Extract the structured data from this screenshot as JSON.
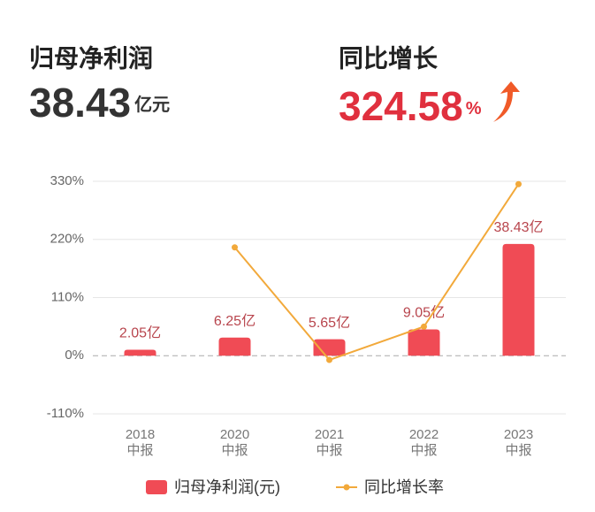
{
  "header": {
    "left": {
      "title": "归母净利润",
      "value": "38.43",
      "unit": "亿元"
    },
    "right": {
      "title": "同比增长",
      "value": "324.58",
      "unit": "%"
    }
  },
  "chart_data": {
    "type": "bar-line",
    "categories": [
      [
        "2018",
        "中报"
      ],
      [
        "2020",
        "中报"
      ],
      [
        "2021",
        "中报"
      ],
      [
        "2022",
        "中报"
      ],
      [
        "2023",
        "中报"
      ]
    ],
    "ylim": [
      -110,
      330
    ],
    "yticks": [
      {
        "value": -110,
        "label": "-110%"
      },
      {
        "value": 0,
        "label": "0%"
      },
      {
        "value": 110,
        "label": "110%"
      },
      {
        "value": 220,
        "label": "220%"
      },
      {
        "value": 330,
        "label": "330%"
      }
    ],
    "y2lim": [
      -20,
      60
    ],
    "grid": true,
    "series": [
      {
        "name": "归母净利润(元)",
        "type": "bar",
        "axis": "y2",
        "color": "#f04b55",
        "values": [
          2.05,
          6.25,
          5.65,
          9.05,
          38.43
        ],
        "value_labels": [
          "2.05亿",
          "6.25亿",
          "5.65亿",
          "9.05亿",
          "38.43亿"
        ]
      },
      {
        "name": "同比增长率",
        "type": "line",
        "color": "#f2a93b",
        "values": [
          null,
          205,
          -8,
          55,
          324.58
        ]
      }
    ]
  }
}
